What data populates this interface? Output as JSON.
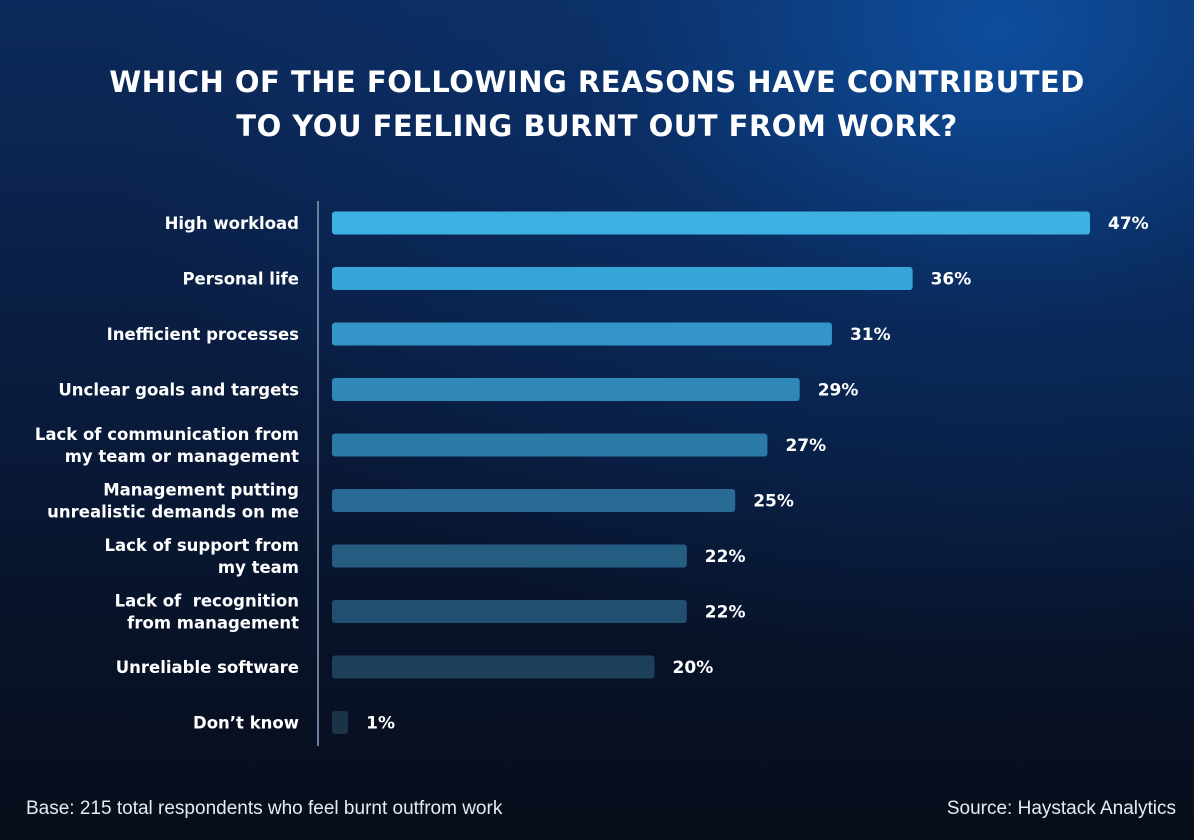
{
  "title_lines": [
    "WHICH OF THE FOLLOWING REASONS HAVE CONTRIBUTED",
    "TO YOU FEELING BURNT OUT FROM WORK?"
  ],
  "footer": {
    "base": "Base: 215 total respondents who feel burnt outfrom work",
    "source": "Source: Haystack Analytics"
  },
  "chart_data": {
    "type": "bar",
    "orientation": "horizontal",
    "grid": false,
    "categories": [
      [
        "High workload"
      ],
      [
        "Personal life"
      ],
      [
        "Inefficient processes"
      ],
      [
        "Unclear goals and targets"
      ],
      [
        "Lack of communication from",
        "my team or management"
      ],
      [
        "Management putting",
        "unrealistic demands on me"
      ],
      [
        "Lack of support from",
        "my team"
      ],
      [
        "Lack of  recognition",
        "from management"
      ],
      [
        "Unreliable software"
      ],
      [
        "Don’t know"
      ]
    ],
    "values": [
      47,
      36,
      31,
      29,
      27,
      25,
      22,
      22,
      20,
      1
    ],
    "value_labels": [
      "47%",
      "36%",
      "31%",
      "29%",
      "27%",
      "25%",
      "22%",
      "22%",
      "20%",
      "1%"
    ],
    "colors": [
      "#3eb1e3",
      "#38a5d8",
      "#3395c8",
      "#2f88b8",
      "#2b79a5",
      "#286a93",
      "#255d82",
      "#224f70",
      "#1d3f5a",
      "#1a3347"
    ],
    "axis_color": "#6a7d9a"
  }
}
